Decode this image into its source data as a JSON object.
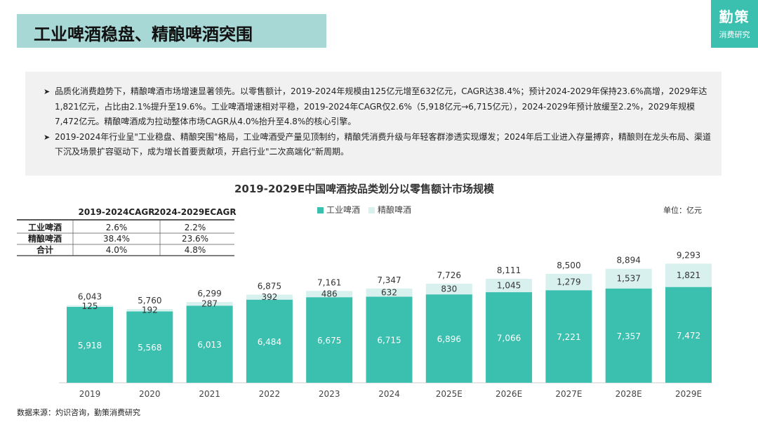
{
  "header": {
    "title": "工业啤酒稳盘、精酿啤酒突围"
  },
  "logo": {
    "main": "勤策",
    "sub": "消费研究"
  },
  "summary": {
    "bullets": [
      "品质化消费趋势下，精酿啤酒市场增速显著领先。以零售额计，2019-2024年规模由125亿元增至632亿元，CAGR达38.4%；预计2024-2029年保持23.6%高增，2029年达1,821亿元，占比由2.1%提升至19.6%。工业啤酒增速相对平稳，2019-2024年CAGR仅2.6%（5,918亿元→6,715亿元），2024-2029年预计放缓至2.2%，2029年规模7,472亿元。精酿啤酒成为拉动整体市场CAGR从4.0%抬升至4.8%的核心引擎。",
      "2019-2024年行业呈\"工业稳盘、精酿突围\"格局，工业啤酒受产量见顶制约，精酿凭消费升级与年轻客群渗透实现爆发；2024年后工业进入存量搏弈，精酿则在龙头布局、渠道下沉及场景扩容驱动下，成为增长首要贡献项，开启行业\"二次高端化\"新周期。"
    ]
  },
  "cagr_table": {
    "headers": [
      "",
      "2019-2024CAGR",
      "2024-2029ECAGR"
    ],
    "rows": [
      [
        "工业啤酒",
        "2.6%",
        "2.2%"
      ],
      [
        "精酿啤酒",
        "38.4%",
        "23.6%"
      ],
      [
        "合计",
        "4.0%",
        "4.8%"
      ]
    ]
  },
  "footer": {
    "source": "数据来源：灼识咨询，勤策消费研究"
  },
  "colors": {
    "industrial": "#3bbfae",
    "craft": "#d8f1ee",
    "accent": "#a8d8d6"
  },
  "chart_data": {
    "type": "bar",
    "stacked": true,
    "title": "2019-2029E中国啤酒按品类划分以零售额计市场规模",
    "unit_label": "单位：亿元",
    "legend_position": "top",
    "categories": [
      "2019",
      "2020",
      "2021",
      "2022",
      "2023",
      "2024",
      "2025E",
      "2026E",
      "2027E",
      "2028E",
      "2029E"
    ],
    "series": [
      {
        "name": "工业啤酒",
        "values": [
          5918,
          5568,
          6013,
          6484,
          6675,
          6715,
          6896,
          7066,
          7221,
          7357,
          7472
        ],
        "labels": [
          "5,918",
          "5,568",
          "6,013",
          "6,484",
          "6,675",
          "6,715",
          "6,896",
          "7,066",
          "7,221",
          "7,357",
          "7,472"
        ]
      },
      {
        "name": "精酿啤酒",
        "values": [
          125,
          192,
          287,
          392,
          486,
          632,
          830,
          1045,
          1279,
          1537,
          1821
        ],
        "labels": [
          "125",
          "192",
          "287",
          "392",
          "486",
          "632",
          "830",
          "1,045",
          "1,279",
          "1,537",
          "1,821"
        ]
      }
    ],
    "totals": [
      6043,
      5760,
      6299,
      6875,
      7161,
      7347,
      7726,
      8111,
      8500,
      8894,
      9293
    ],
    "total_labels": [
      "6,043",
      "5,760",
      "6,299",
      "6,875",
      "7,161",
      "7,347",
      "7,726",
      "8,111",
      "8,500",
      "8,894",
      "9,293"
    ]
  }
}
